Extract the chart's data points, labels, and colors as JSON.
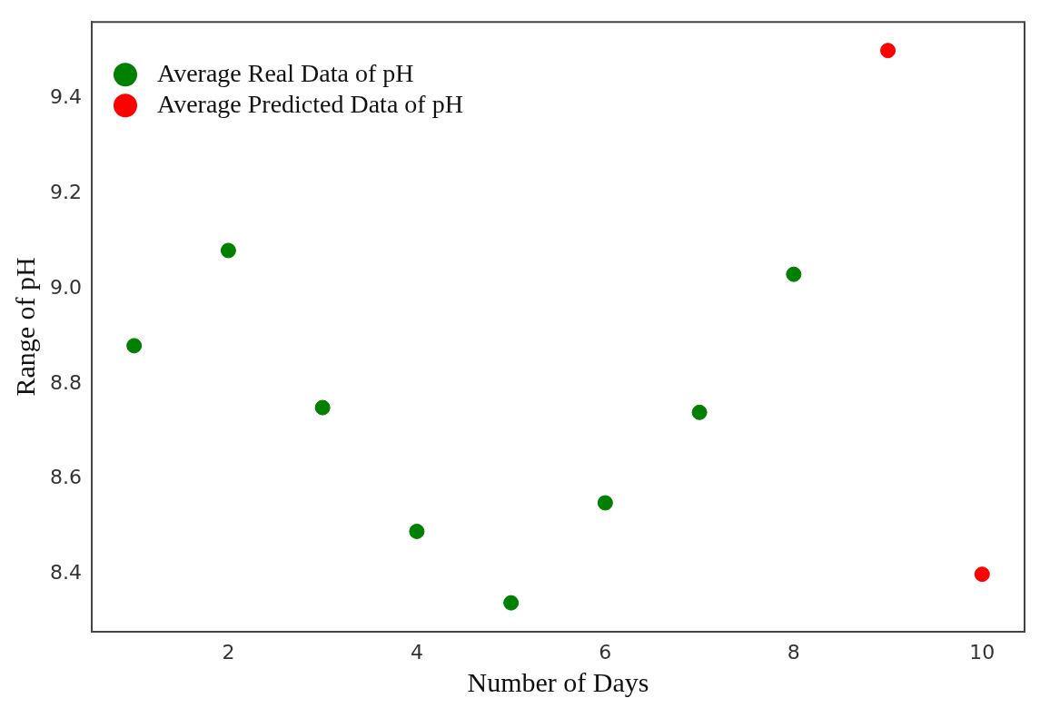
{
  "chart_data": {
    "type": "scatter",
    "xlabel": "Number of Days",
    "ylabel": "Range of pH",
    "series": [
      {
        "name": "Average Real Data of pH",
        "color": "#008000",
        "x": [
          1,
          2,
          3,
          4,
          5,
          6,
          7,
          8
        ],
        "values": [
          8.88,
          9.08,
          8.75,
          8.49,
          8.34,
          8.55,
          8.74,
          9.03
        ]
      },
      {
        "name": "Average Predicted Data of pH",
        "color": "#ff0000",
        "x": [
          9,
          10
        ],
        "values": [
          9.5,
          8.4
        ]
      }
    ],
    "xlim": [
      0.55,
      10.45
    ],
    "ylim": [
      8.28,
      9.56
    ],
    "xticks": [
      2,
      4,
      6,
      8,
      10
    ],
    "yticks": [
      8.4,
      8.6,
      8.8,
      {
        "value": 9,
        "label": "9.0"
      },
      9.2,
      9.4
    ],
    "grid": false,
    "legend": "top left",
    "marker": "circle"
  }
}
